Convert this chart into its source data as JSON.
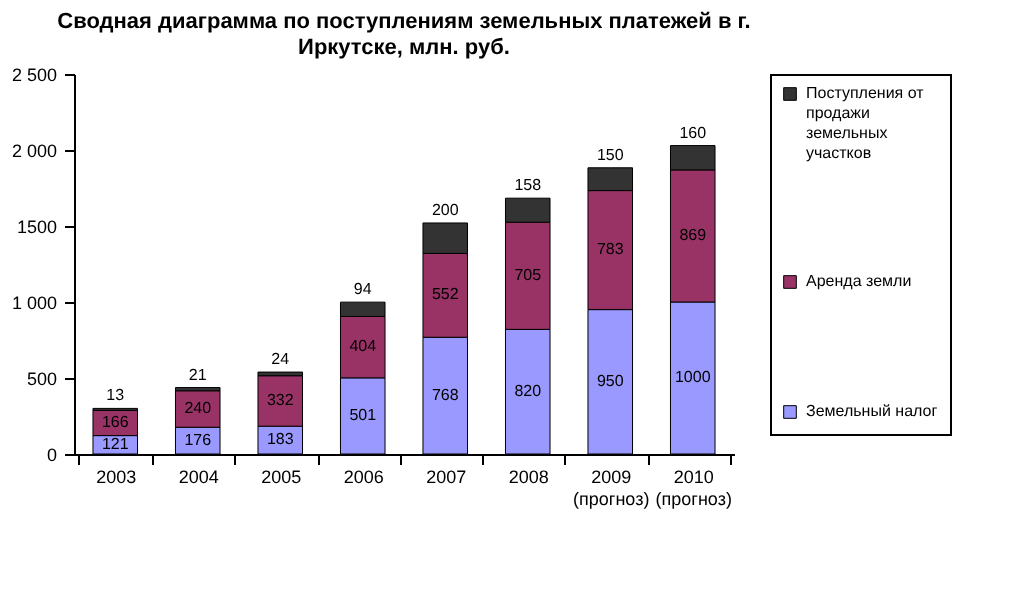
{
  "chart_data": {
    "type": "bar",
    "title": "Сводная диаграмма по поступлениям земельных платежей в г. Иркутске, млн. руб.",
    "categories": [
      "2003",
      "2004",
      "2005",
      "2006",
      "2007",
      "2008",
      "2009 (прогноз)",
      "2010 (прогноз)"
    ],
    "series": [
      {
        "name": "Земельный налог",
        "color": "#9999ff",
        "values": [
          121,
          176,
          183,
          501,
          768,
          820,
          950,
          1000
        ]
      },
      {
        "name": "Аренда земли",
        "color": "#993366",
        "values": [
          166,
          240,
          332,
          404,
          552,
          705,
          783,
          869
        ]
      },
      {
        "name": "Поступления от продажи земельных участков",
        "color": "#333333",
        "values": [
          13,
          21,
          24,
          94,
          200,
          158,
          150,
          160
        ]
      }
    ],
    "stacked": true,
    "data_labels": true,
    "grid": false,
    "legend": "right",
    "ylim": [
      0,
      2500
    ],
    "yticks": [
      0,
      {
        "value": 500,
        "label": "500"
      },
      {
        "value": 1000,
        "label": "1 000"
      },
      1500,
      {
        "value": 2000,
        "label": "2 000"
      },
      {
        "value": 2500,
        "label": "2 500"
      }
    ]
  }
}
